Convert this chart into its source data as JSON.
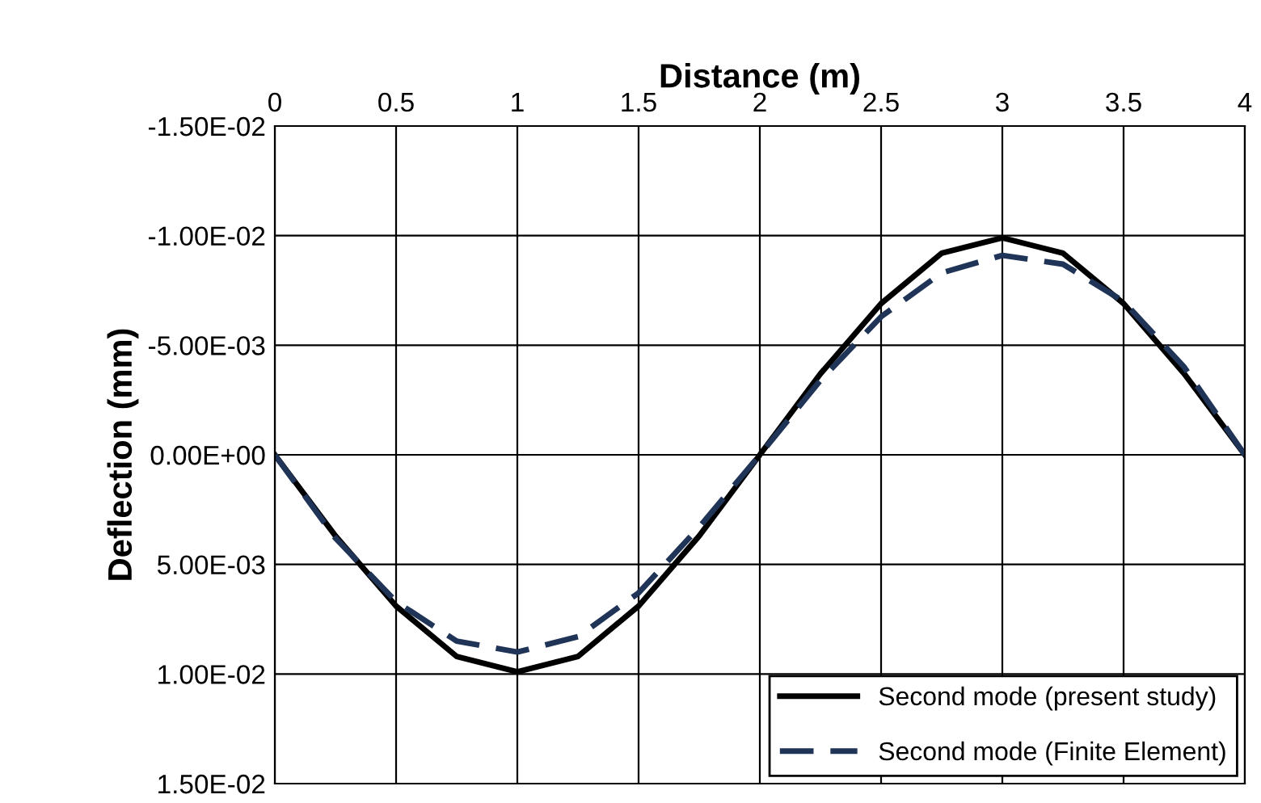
{
  "chart_data": {
    "type": "line",
    "xlabel": "Distance (m)",
    "ylabel": "Deflection (mm)",
    "xlim": [
      0,
      4
    ],
    "xticks": [
      0,
      0.5,
      1,
      1.5,
      2,
      2.5,
      3,
      3.5,
      4
    ],
    "ylim": [
      0.015,
      -0.015
    ],
    "yticks": [
      {
        "value": -0.015,
        "label": "-1.50E-02"
      },
      {
        "value": -0.01,
        "label": "-1.00E-02"
      },
      {
        "value": -0.005,
        "label": "-5.00E-03"
      },
      {
        "value": 0,
        "label": "0.00E+00"
      },
      {
        "value": 0.005,
        "label": "5.00E-03"
      },
      {
        "value": 0.01,
        "label": "1.00E-02"
      },
      {
        "value": 0.015,
        "label": "1.50E-02"
      }
    ],
    "grid": true,
    "legend": "bottom right",
    "marker": "none",
    "x": [
      0,
      0.25,
      0.5,
      0.75,
      1,
      1.25,
      1.5,
      1.75,
      2,
      2.25,
      2.5,
      2.75,
      3,
      3.25,
      3.5,
      3.75,
      4
    ],
    "series": [
      {
        "name": "Second mode (present study)",
        "color": "#000000",
        "line_style": "solid",
        "values": [
          0,
          0.0037,
          0.0069,
          0.0092,
          0.0099,
          0.0092,
          0.0069,
          0.0037,
          0,
          -0.0037,
          -0.0069,
          -0.0092,
          -0.0099,
          -0.0092,
          -0.0069,
          -0.0037,
          0
        ]
      },
      {
        "name": "Second mode (Finite Element)",
        "color": "#1f3457",
        "line_style": "dashed",
        "values": [
          0,
          0.0038,
          0.0067,
          0.0085,
          0.009,
          0.0083,
          0.0063,
          0.0033,
          0,
          -0.0034,
          -0.0063,
          -0.0083,
          -0.0091,
          -0.0087,
          -0.007,
          -0.004,
          0
        ]
      }
    ]
  }
}
